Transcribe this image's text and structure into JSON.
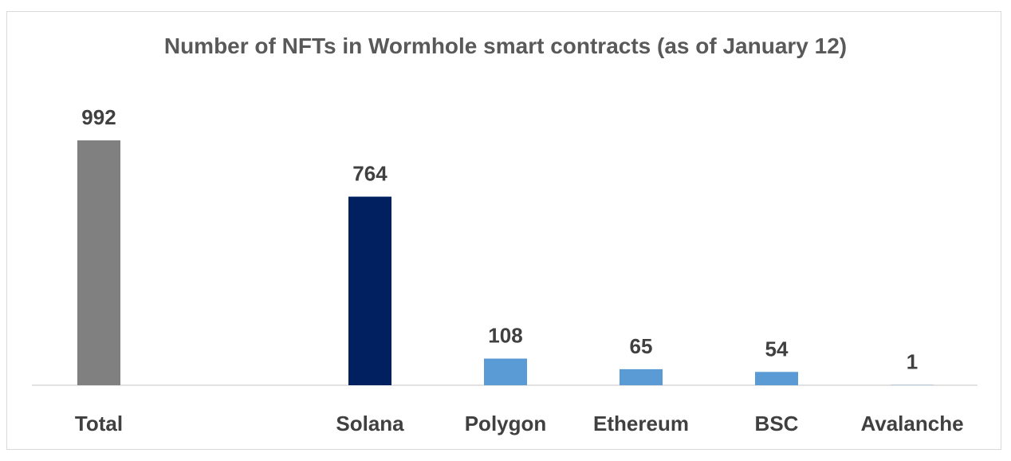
{
  "chart_data": {
    "type": "bar",
    "title": "Number of NFTs in Wormhole smart contracts (as of January 12)",
    "categories": [
      "Total",
      "Solana",
      "Polygon",
      "Ethereum",
      "BSC",
      "Avalanche"
    ],
    "values": [
      992,
      764,
      108,
      65,
      54,
      1
    ],
    "colors": [
      "#808080",
      "#002060",
      "#5b9bd5",
      "#5b9bd5",
      "#5b9bd5",
      "#5b9bd5"
    ],
    "ylim": [
      0,
      992
    ],
    "grid": false,
    "legend": "none"
  }
}
